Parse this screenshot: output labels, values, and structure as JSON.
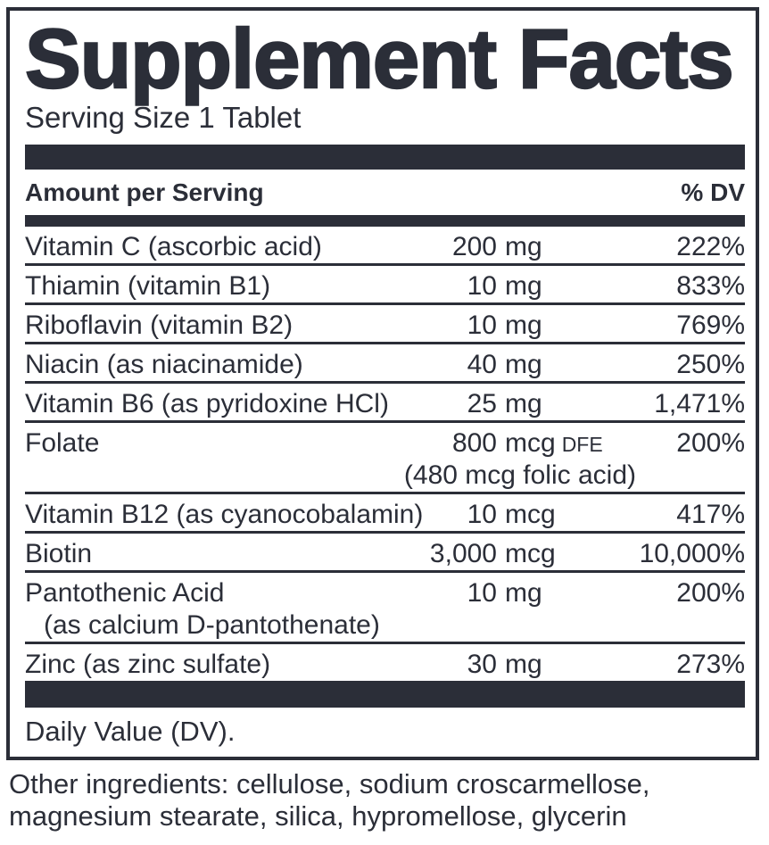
{
  "panel": {
    "title": "Supplement Facts",
    "serving_size": "Serving Size 1 Tablet",
    "header": {
      "amount_label": "Amount per Serving",
      "dv_label": "% DV"
    },
    "rows": [
      {
        "name": "Vitamin C (ascorbic acid)",
        "amount": "200",
        "unit": "mg",
        "dv": "222%"
      },
      {
        "name": "Thiamin (vitamin B1)",
        "amount": "10",
        "unit": "mg",
        "dv": "833%"
      },
      {
        "name": "Riboflavin (vitamin B2)",
        "amount": "10",
        "unit": "mg",
        "dv": "769%"
      },
      {
        "name": "Niacin (as niacinamide)",
        "amount": "40",
        "unit": "mg",
        "dv": "250%"
      },
      {
        "name": "Vitamin B6 (as pyridoxine HCl)",
        "amount": "25",
        "unit": "mg",
        "dv": "1,471%"
      },
      {
        "name": "Folate",
        "amount": "800",
        "unit": "mcg",
        "unit_suffix": "DFE",
        "dv": "200%",
        "sub": "(480 mcg folic acid)",
        "sub_align": "amount"
      },
      {
        "name": "Vitamin B12 (as cyanocobalamin)",
        "amount": "10",
        "unit": "mcg",
        "dv": "417%"
      },
      {
        "name": "Biotin",
        "amount": "3,000",
        "unit": "mcg",
        "dv": "10,000%"
      },
      {
        "name": "Pantothenic Acid",
        "amount": "10",
        "unit": "mg",
        "dv": "200%",
        "sub": "(as calcium D-pantothenate)",
        "sub_align": "label"
      },
      {
        "name": "Zinc (as zinc sulfate)",
        "amount": "30",
        "unit": "mg",
        "dv": "273%"
      }
    ],
    "footnote": "Daily Value (DV).",
    "other_ingredients_lines": [
      "Other ingredients: cellulose, sodium croscarmellose,",
      "magnesium stearate, silica, hypromellose, glycerin"
    ]
  },
  "colors": {
    "ink": "#2b2e38",
    "background": "#ffffff"
  }
}
